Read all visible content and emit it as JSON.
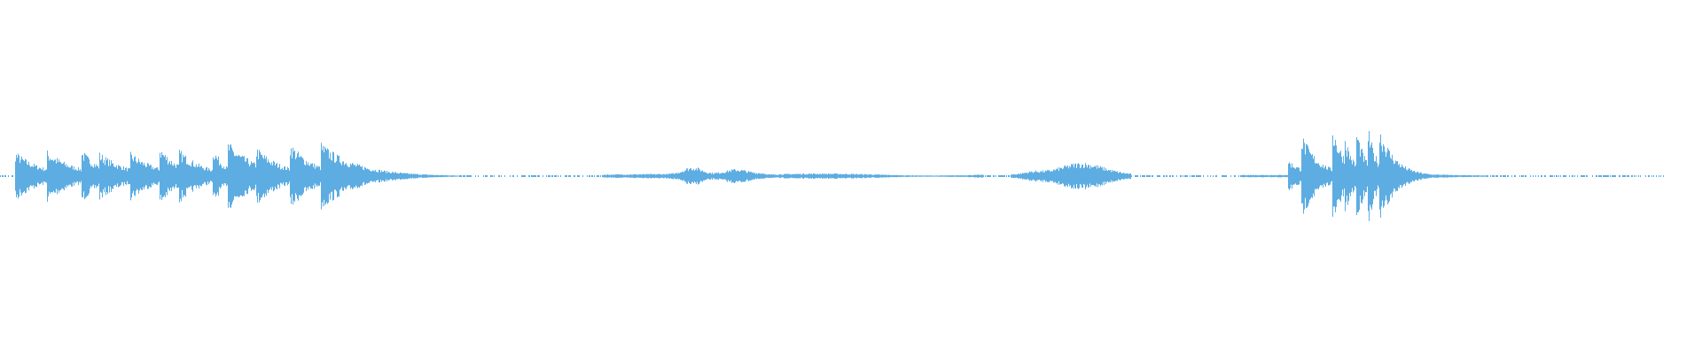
{
  "waveform": {
    "color": "#5dade2",
    "background": "#ffffff",
    "style": "mirrored-amplitude-envelope"
  }
}
